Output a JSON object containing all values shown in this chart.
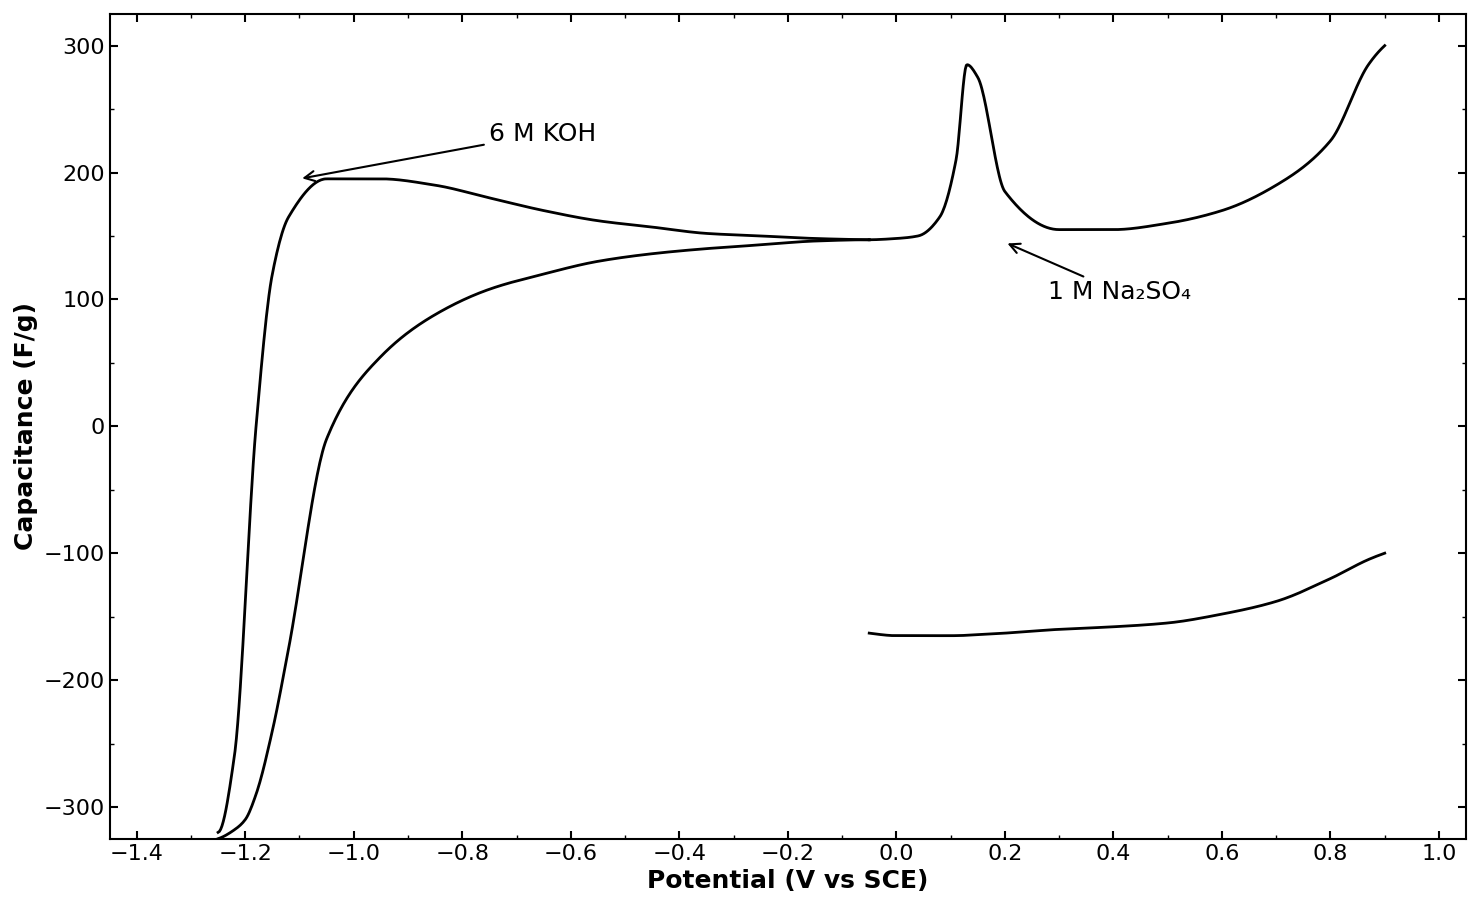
{
  "title": "",
  "xlabel": "Potential (V vs SCE)",
  "ylabel": "Capacitance (F/g)",
  "xlim": [
    -1.45,
    1.05
  ],
  "ylim": [
    -325,
    325
  ],
  "xticks": [
    -1.4,
    -1.2,
    -1.0,
    -0.8,
    -0.6,
    -0.4,
    -0.2,
    0.0,
    0.2,
    0.4,
    0.6,
    0.8,
    1.0
  ],
  "yticks": [
    -300,
    -200,
    -100,
    0,
    100,
    200,
    300
  ],
  "annotation_koh": "6 M KOH",
  "annotation_na2so4": "1 M Na₂SO₄",
  "line_color": "#000000",
  "background_color": "#ffffff",
  "xlabel_fontsize": 18,
  "ylabel_fontsize": 18,
  "tick_fontsize": 16,
  "annotation_fontsize": 18
}
